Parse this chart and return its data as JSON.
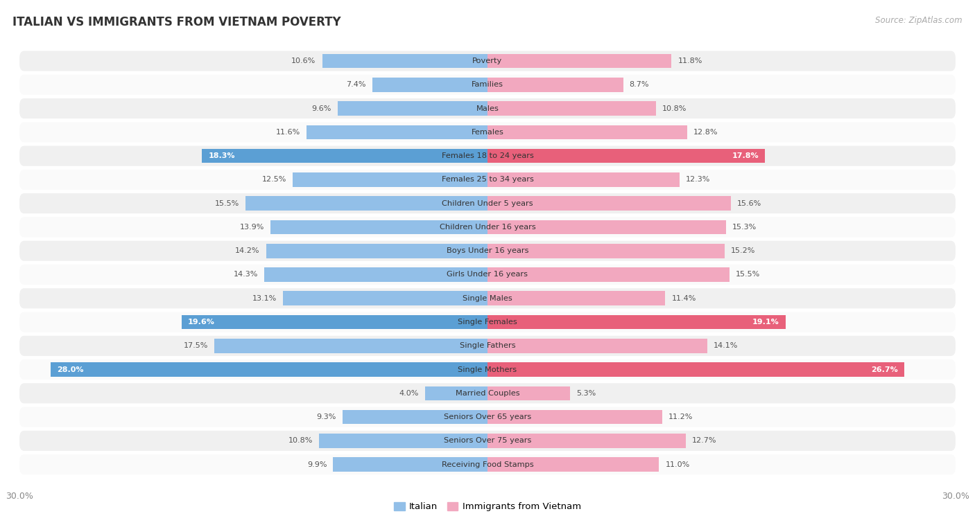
{
  "title": "ITALIAN VS IMMIGRANTS FROM VIETNAM POVERTY",
  "source": "Source: ZipAtlas.com",
  "categories": [
    "Poverty",
    "Families",
    "Males",
    "Females",
    "Females 18 to 24 years",
    "Females 25 to 34 years",
    "Children Under 5 years",
    "Children Under 16 years",
    "Boys Under 16 years",
    "Girls Under 16 years",
    "Single Males",
    "Single Females",
    "Single Fathers",
    "Single Mothers",
    "Married Couples",
    "Seniors Over 65 years",
    "Seniors Over 75 years",
    "Receiving Food Stamps"
  ],
  "italian": [
    10.6,
    7.4,
    9.6,
    11.6,
    18.3,
    12.5,
    15.5,
    13.9,
    14.2,
    14.3,
    13.1,
    19.6,
    17.5,
    28.0,
    4.0,
    9.3,
    10.8,
    9.9
  ],
  "vietnam": [
    11.8,
    8.7,
    10.8,
    12.8,
    17.8,
    12.3,
    15.6,
    15.3,
    15.2,
    15.5,
    11.4,
    19.1,
    14.1,
    26.7,
    5.3,
    11.2,
    12.7,
    11.0
  ],
  "italian_color": "#92bfe8",
  "vietnam_color": "#f2a8bf",
  "italian_highlight_color": "#5b9fd4",
  "vietnam_highlight_color": "#e8607a",
  "highlight_rows": [
    4,
    11,
    13
  ],
  "axis_max": 30.0,
  "background_color": "#ffffff",
  "row_bg_odd": "#f0f0f0",
  "row_bg_even": "#fafafa",
  "title_color": "#333333",
  "label_color": "#555555",
  "highlight_label_color": "#ffffff"
}
